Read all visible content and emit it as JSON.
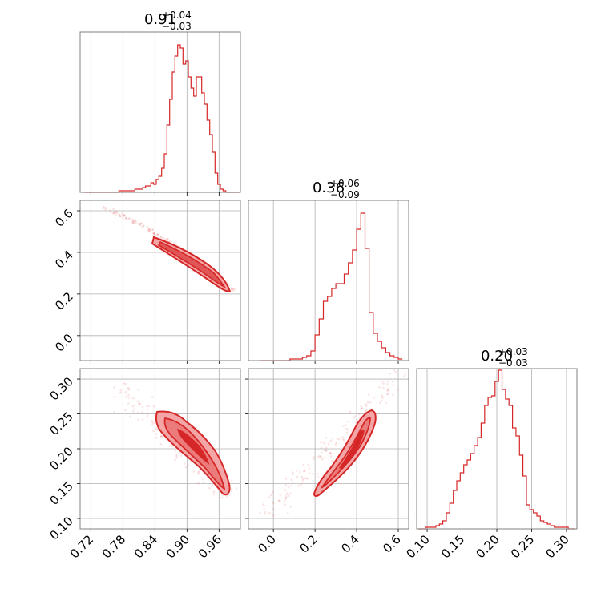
{
  "colors": {
    "series": "#d62728",
    "contour_fill": "#f4a6a6",
    "grid": "#b0b0b0",
    "frame": "#808080"
  },
  "chart_data": [
    {
      "type": "histogram",
      "panel": "param1",
      "title_value": "0.91",
      "title_plus": "+0.04",
      "title_minus": "−0.03",
      "xlim": [
        0.7,
        1.0
      ],
      "x": [
        0.71,
        0.715,
        0.72,
        0.725,
        0.73,
        0.735,
        0.74,
        0.745,
        0.75,
        0.755,
        0.76,
        0.765,
        0.77,
        0.775,
        0.78,
        0.785,
        0.79,
        0.795,
        0.8,
        0.805,
        0.81,
        0.815,
        0.82,
        0.825,
        0.83,
        0.835,
        0.84,
        0.845,
        0.85,
        0.855,
        0.86,
        0.865,
        0.87,
        0.875,
        0.88,
        0.885,
        0.89,
        0.895,
        0.9,
        0.905,
        0.91,
        0.915,
        0.92,
        0.925,
        0.93,
        0.935,
        0.94,
        0.945,
        0.95,
        0.955,
        0.96,
        0.965,
        0.97,
        0.975,
        0.98,
        0.985,
        0.99,
        0.995
      ],
      "values": [
        0,
        0,
        0,
        0,
        0,
        0,
        0,
        0,
        0,
        0,
        0,
        0,
        0,
        1,
        1,
        1,
        1,
        1,
        1,
        2,
        2,
        2,
        3,
        4,
        4,
        6,
        5,
        8,
        10,
        15,
        24,
        42,
        58,
        75,
        85,
        92,
        90,
        80,
        82,
        72,
        65,
        60,
        72,
        72,
        62,
        55,
        45,
        36,
        25,
        12,
        5,
        2,
        1,
        0,
        0,
        0,
        0,
        0
      ],
      "ylim": [
        0,
        100
      ]
    },
    {
      "type": "histogram",
      "panel": "param2",
      "title_value": "0.36",
      "title_plus": "+0.06",
      "title_minus": "−0.09",
      "xlim": [
        -0.12,
        0.65
      ],
      "x": [
        -0.05,
        -0.03,
        -0.01,
        0.01,
        0.03,
        0.05,
        0.07,
        0.09,
        0.11,
        0.13,
        0.15,
        0.17,
        0.19,
        0.21,
        0.23,
        0.25,
        0.27,
        0.29,
        0.31,
        0.33,
        0.35,
        0.37,
        0.39,
        0.41,
        0.43,
        0.45,
        0.47,
        0.49,
        0.51,
        0.53,
        0.55,
        0.57,
        0.59,
        0.61
      ],
      "values": [
        0,
        0,
        0,
        0,
        0,
        0,
        0,
        1,
        1,
        1,
        2,
        3,
        6,
        16,
        26,
        37,
        40,
        45,
        48,
        48,
        54,
        61,
        69,
        82,
        92,
        70,
        30,
        17,
        12,
        8,
        5,
        3,
        2,
        1
      ],
      "ylim": [
        0,
        100
      ]
    },
    {
      "type": "histogram",
      "panel": "param3",
      "title_value": "0.20",
      "title_plus": "+0.03",
      "title_minus": "−0.03",
      "xlim": [
        0.085,
        0.315
      ],
      "x": [
        0.09,
        0.095,
        0.1,
        0.105,
        0.11,
        0.115,
        0.12,
        0.125,
        0.13,
        0.135,
        0.14,
        0.145,
        0.15,
        0.155,
        0.16,
        0.165,
        0.17,
        0.175,
        0.18,
        0.185,
        0.19,
        0.195,
        0.2,
        0.205,
        0.21,
        0.215,
        0.22,
        0.225,
        0.23,
        0.235,
        0.24,
        0.245,
        0.25,
        0.255,
        0.26,
        0.265,
        0.27,
        0.275,
        0.28,
        0.285,
        0.29,
        0.295,
        0.3,
        0.305,
        0.31
      ],
      "values": [
        0,
        0,
        1,
        1,
        1,
        2,
        3,
        5,
        10,
        16,
        24,
        30,
        35,
        40,
        43,
        47,
        52,
        57,
        66,
        77,
        82,
        83,
        92,
        99,
        87,
        81,
        77,
        63,
        58,
        46,
        33,
        15,
        12,
        10,
        8,
        5,
        4,
        3,
        2,
        1,
        1,
        1,
        1,
        0,
        0
      ],
      "ylim": [
        0,
        100
      ]
    },
    {
      "type": "scatter",
      "panel": "param1-vs-param2",
      "xlim": [
        0.7,
        1.0
      ],
      "ylim": [
        -0.12,
        0.65
      ],
      "x_ticks": [
        "0.72",
        "0.78",
        "0.84",
        "0.90",
        "0.96"
      ],
      "x_tick_values": [
        0.72,
        0.78,
        0.84,
        0.9,
        0.96
      ],
      "y_ticks": [
        "0.0",
        "0.2",
        "0.4",
        "0.6"
      ],
      "y_tick_values": [
        0.0,
        0.2,
        0.4,
        0.6
      ]
    },
    {
      "type": "scatter",
      "panel": "param1-vs-param3",
      "xlim": [
        0.7,
        1.0
      ],
      "ylim": [
        0.085,
        0.315
      ],
      "x_ticks": [
        "0.72",
        "0.78",
        "0.84",
        "0.90",
        "0.96"
      ],
      "x_tick_values": [
        0.72,
        0.78,
        0.84,
        0.9,
        0.96
      ],
      "y_ticks": [
        "0.10",
        "0.15",
        "0.20",
        "0.25",
        "0.30"
      ],
      "y_tick_values": [
        0.1,
        0.15,
        0.2,
        0.25,
        0.3
      ]
    },
    {
      "type": "scatter",
      "panel": "param2-vs-param3",
      "xlim": [
        -0.12,
        0.65
      ],
      "ylim": [
        0.085,
        0.315
      ],
      "x_ticks": [
        "0.0",
        "0.2",
        "0.4",
        "0.6"
      ],
      "x_tick_values": [
        0.0,
        0.2,
        0.4,
        0.6
      ],
      "y_ticks": [],
      "y_tick_values": []
    },
    {
      "type": "histogram-axis",
      "panel": "param3",
      "x_ticks": [
        "0.10",
        "0.15",
        "0.20",
        "0.25",
        "0.30"
      ],
      "x_tick_values": [
        0.1,
        0.15,
        0.2,
        0.25,
        0.3
      ]
    }
  ]
}
